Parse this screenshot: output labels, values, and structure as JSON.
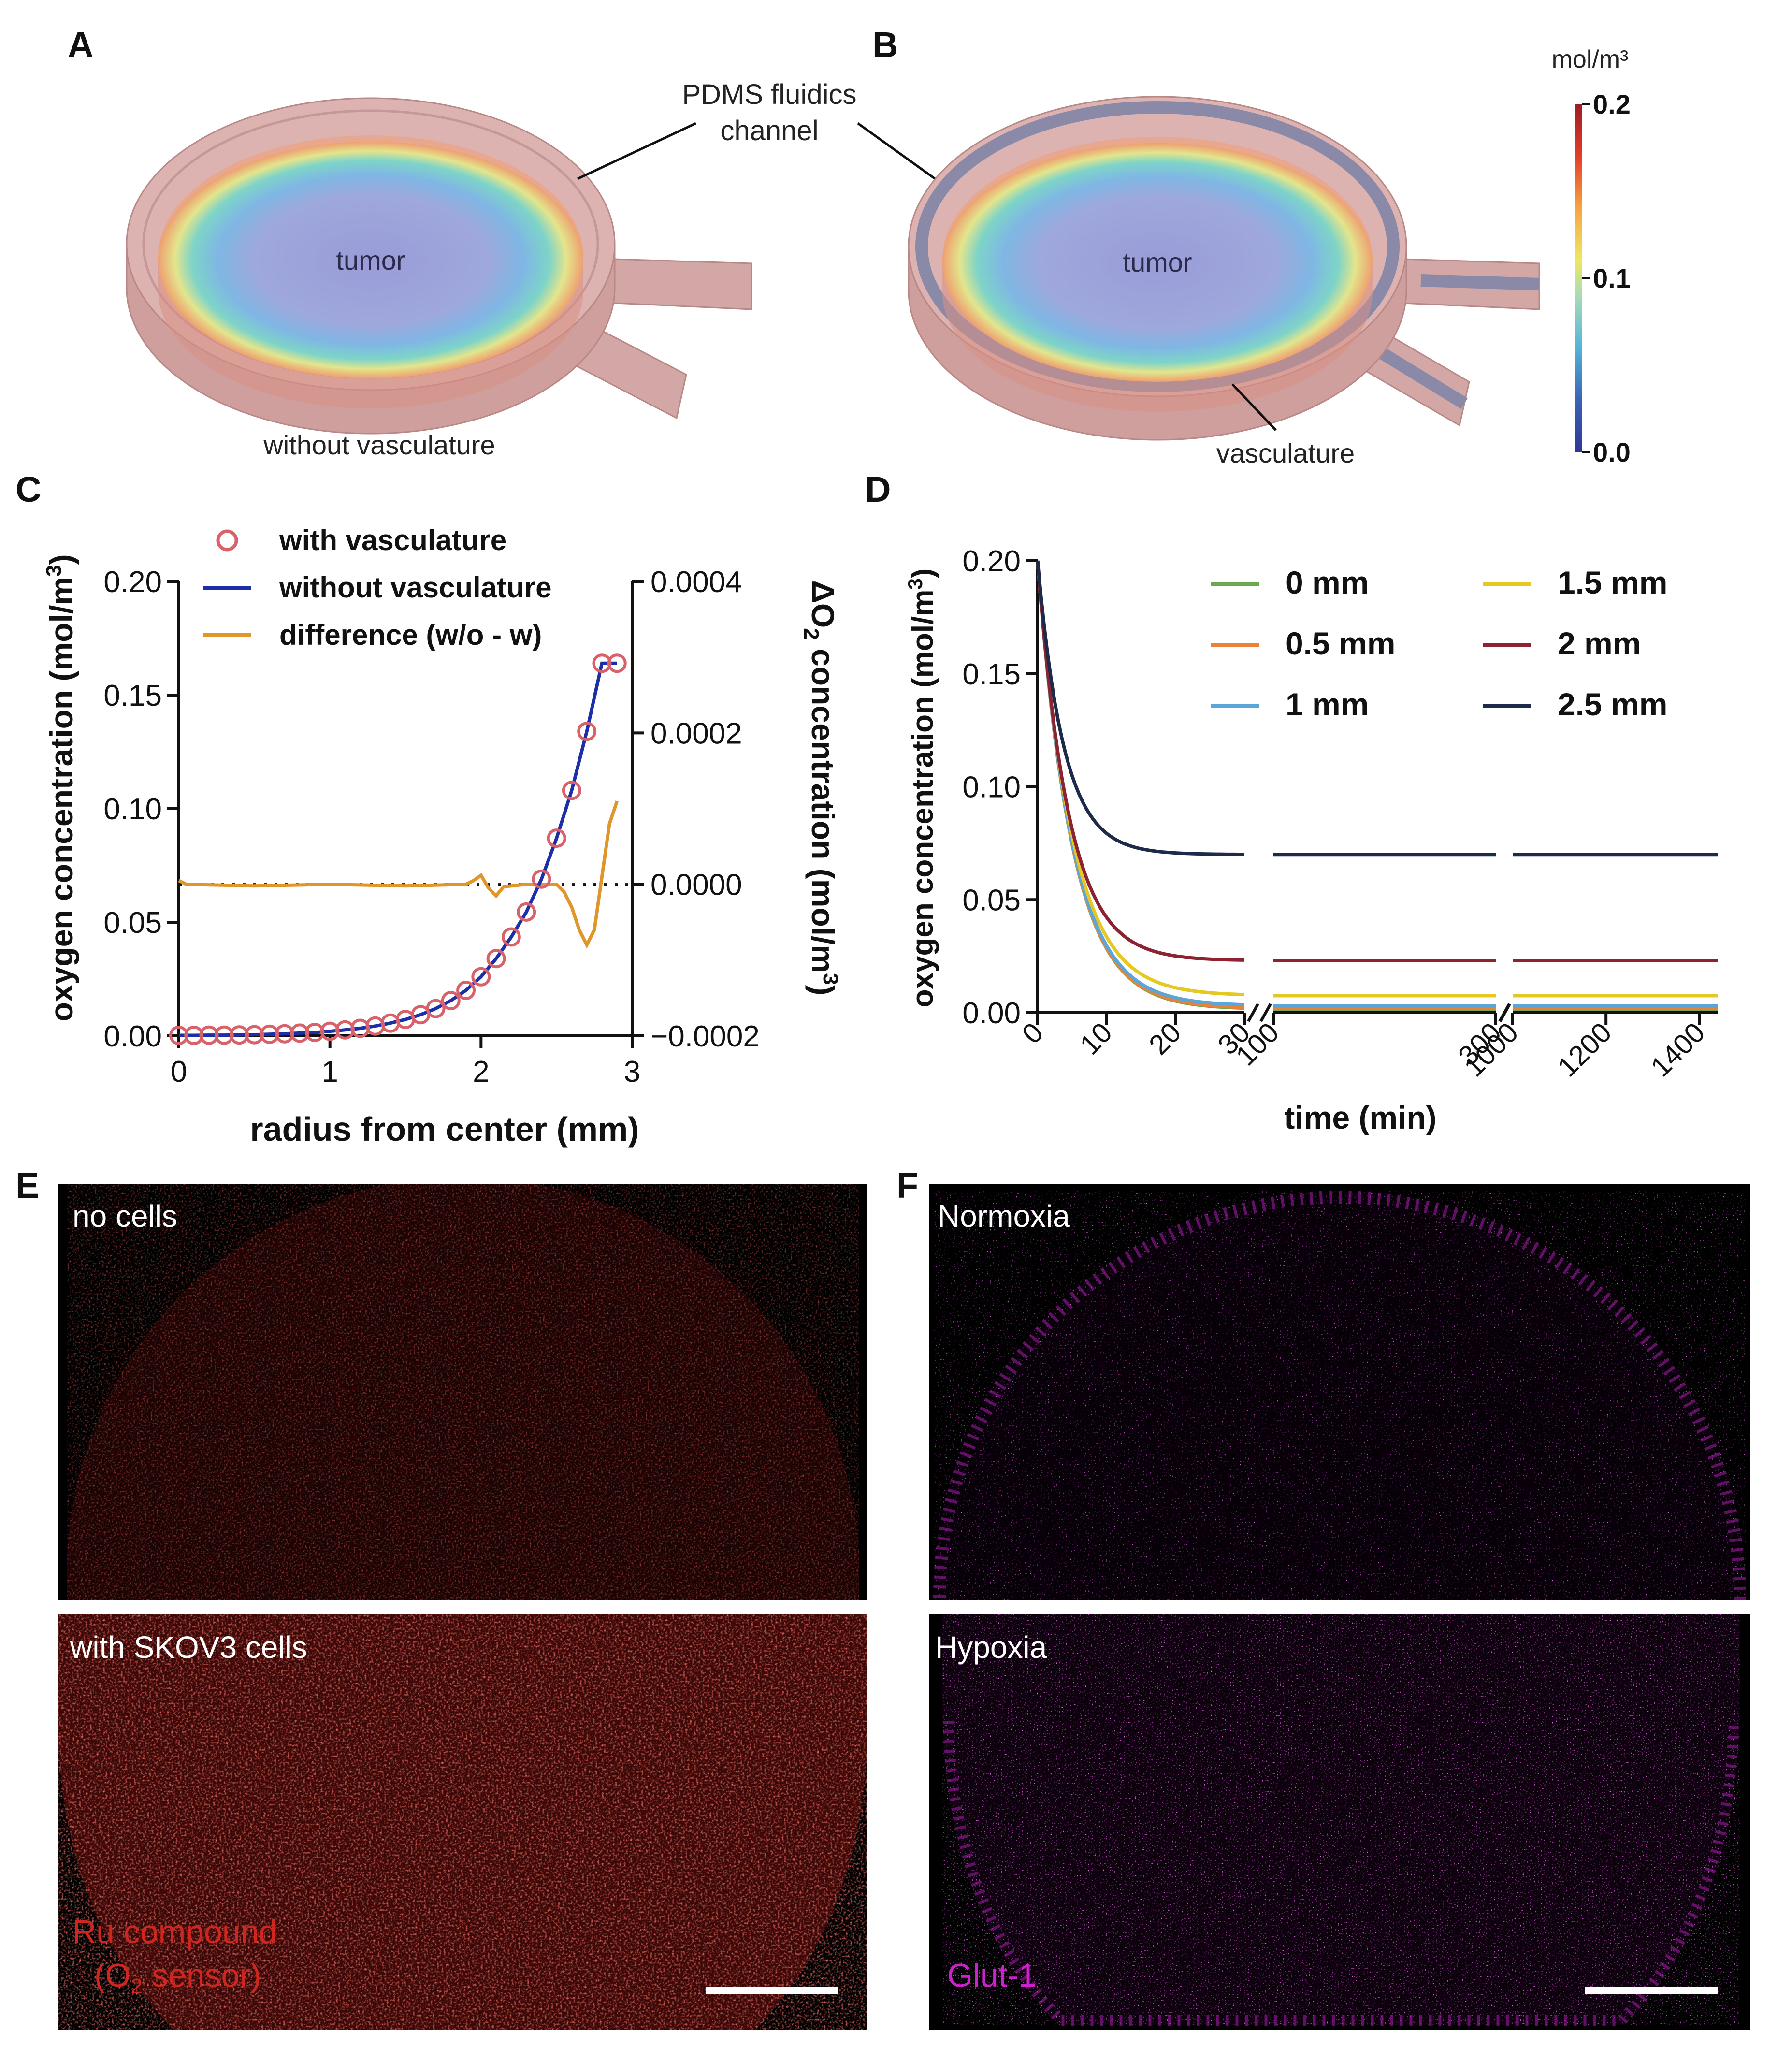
{
  "panels": {
    "A": "A",
    "B": "B",
    "C": "C",
    "D": "D",
    "E": "E",
    "F": "F"
  },
  "panel_a": {
    "tumor_label": "tumor",
    "caption": "without vasculature",
    "pdms_label_line1": "PDMS fluidics",
    "pdms_label_line2": "channel"
  },
  "panel_b": {
    "tumor_label": "tumor",
    "vasculature_label": "vasculature"
  },
  "colorbar": {
    "unit": "mol/m³",
    "ticks": [
      "0.2",
      "0.1",
      "0.0"
    ],
    "min": 0.0,
    "max": 0.2
  },
  "chart_data": [
    {
      "id": "C",
      "type": "line",
      "xlabel": "radius from center (mm)",
      "ylabel": "oxygen concentration (mol/m",
      "ylabel_sup": "3",
      "ylabel_close": ")",
      "y2label_prefix": "ΔO",
      "y2label_sub": "2",
      "y2label_main": " concentration (mol/m",
      "y2label_sup": "3",
      "y2label_close": ")",
      "xlim": [
        0,
        3
      ],
      "ylim": [
        0,
        0.2
      ],
      "y2lim": [
        -0.0002,
        0.0004
      ],
      "xticks": [
        "0",
        "1",
        "2",
        "3"
      ],
      "yticks": [
        "0.00",
        "0.05",
        "0.10",
        "0.15",
        "0.20"
      ],
      "y2ticks": [
        "−0.0002",
        "0.0000",
        "0.0002",
        "0.0004"
      ],
      "legend": [
        {
          "label": "with vasculature",
          "color": "#d9626a",
          "marker": "circle"
        },
        {
          "label": "without vasculature",
          "color": "#1c2fa8",
          "marker": "line"
        },
        {
          "label": "difference (w/o - w)",
          "color": "#e0962a",
          "marker": "line"
        }
      ],
      "x": [
        0,
        0.1,
        0.2,
        0.3,
        0.4,
        0.5,
        0.6,
        0.7,
        0.8,
        0.9,
        1.0,
        1.1,
        1.2,
        1.3,
        1.4,
        1.5,
        1.6,
        1.7,
        1.8,
        1.9,
        2.0,
        2.1,
        2.2,
        2.3,
        2.4,
        2.5,
        2.6,
        2.7,
        2.8,
        2.9
      ],
      "series": [
        {
          "name": "with vasculature",
          "values": [
            0.0002,
            0.0002,
            0.0003,
            0.0003,
            0.0004,
            0.0005,
            0.0007,
            0.0009,
            0.0012,
            0.0015,
            0.002,
            0.0026,
            0.0033,
            0.0043,
            0.0056,
            0.0072,
            0.0093,
            0.012,
            0.0155,
            0.02,
            0.026,
            0.034,
            0.0435,
            0.0545,
            0.069,
            0.087,
            0.108,
            0.134,
            0.164,
            0.164
          ]
        },
        {
          "name": "without vasculature",
          "values": [
            0.0002,
            0.0002,
            0.0003,
            0.0003,
            0.0004,
            0.0005,
            0.0007,
            0.0009,
            0.0012,
            0.0015,
            0.002,
            0.0026,
            0.0033,
            0.0043,
            0.0056,
            0.0072,
            0.0093,
            0.012,
            0.0155,
            0.02,
            0.026,
            0.034,
            0.0435,
            0.0545,
            0.069,
            0.087,
            0.108,
            0.134,
            0.164,
            0.164
          ]
        },
        {
          "name": "difference (w/o - w)",
          "axis": "right",
          "x": [
            0,
            0.05,
            0.5,
            1.0,
            1.5,
            1.9,
            1.95,
            2.0,
            2.05,
            2.1,
            2.15,
            2.3,
            2.5,
            2.55,
            2.6,
            2.65,
            2.7,
            2.75,
            2.8,
            2.85,
            2.9
          ],
          "values": [
            5e-06,
            0.0,
            -2e-06,
            0.0,
            -2e-06,
            0.0,
            5e-06,
            1.2e-05,
            -5e-06,
            -1.5e-05,
            -3e-06,
            0.0,
            0.0,
            -1e-05,
            -3e-05,
            -6e-05,
            -8e-05,
            -6e-05,
            1e-05,
            8e-05,
            0.00011
          ]
        }
      ],
      "markers_x": [
        0,
        0.1,
        0.2,
        0.3,
        0.4,
        0.5,
        0.6,
        0.7,
        0.8,
        0.9,
        1.0,
        1.1,
        1.2,
        1.3,
        1.4,
        1.5,
        1.6,
        1.7,
        1.8,
        1.9,
        2.0,
        2.1,
        2.2,
        2.3,
        2.4,
        2.5,
        2.6,
        2.7,
        2.8,
        2.9
      ],
      "zero_line": "dotted"
    },
    {
      "id": "D",
      "type": "line",
      "xlabel": "time (min)",
      "ylabel": "oxygen concentration (mol/m",
      "ylabel_sup": "3",
      "ylabel_close": ")",
      "ylim": [
        0,
        0.2
      ],
      "yticks": [
        "0.00",
        "0.05",
        "0.10",
        "0.15",
        "0.20"
      ],
      "x_segments": [
        {
          "range": [
            0,
            30
          ],
          "ticks": [
            0,
            10,
            20,
            30
          ],
          "tick_labels": [
            "0",
            "10",
            "20",
            "30"
          ]
        },
        {
          "range": [
            100,
            300
          ],
          "ticks": [
            100,
            300
          ],
          "tick_labels": [
            "100",
            "300"
          ]
        },
        {
          "range": [
            1000,
            1440
          ],
          "ticks": [
            1000,
            1200,
            1400
          ],
          "tick_labels": [
            "1000",
            "1200",
            "1400"
          ]
        }
      ],
      "series": [
        {
          "name": "0 mm",
          "color": "#6ba84f",
          "start": 0.2,
          "steady": 0.0015,
          "tau": 5.0
        },
        {
          "name": "0.5 mm",
          "color": "#e8823a",
          "start": 0.2,
          "steady": 0.0018,
          "tau": 5.0
        },
        {
          "name": "1 mm",
          "color": "#5aa6d8",
          "start": 0.2,
          "steady": 0.003,
          "tau": 5.0
        },
        {
          "name": "1.5 mm",
          "color": "#e6c823",
          "start": 0.2,
          "steady": 0.0075,
          "tau": 5.0
        },
        {
          "name": "2 mm",
          "color": "#8b2330",
          "start": 0.2,
          "steady": 0.023,
          "tau": 4.5
        },
        {
          "name": "2.5 mm",
          "color": "#1e2a4a",
          "start": 0.2,
          "steady": 0.07,
          "tau": 3.8
        }
      ],
      "legend": [
        "0 mm",
        "1.5 mm",
        "0.5 mm",
        "2 mm",
        "1 mm",
        "2.5 mm"
      ]
    }
  ],
  "panel_e": {
    "top_label": "no cells",
    "bottom_label": "with SKOV3 cells",
    "stain_line1": "Ru compound",
    "stain_line2_a": "(O",
    "stain_line2_sub": "2",
    "stain_line2_b": " sensor)"
  },
  "panel_f": {
    "top_label": "Normoxia",
    "bottom_label": "Hypoxia",
    "stain_label": "Glut-1"
  },
  "colors": {
    "ru": "#c8231f",
    "glut": "#c31fc8",
    "micro_bg": "#000000"
  }
}
